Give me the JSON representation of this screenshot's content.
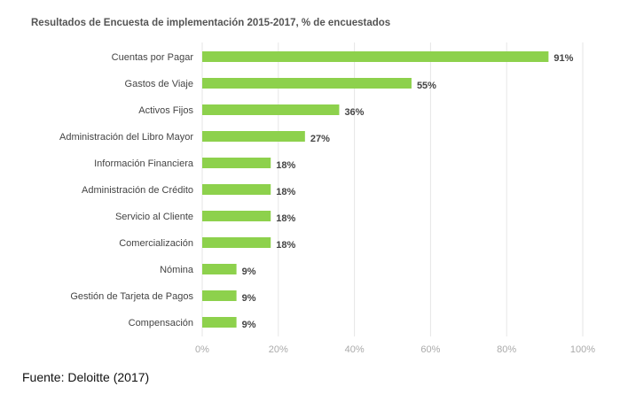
{
  "chart_data": {
    "type": "bar",
    "orientation": "horizontal",
    "title": "Resultados de Encuesta de implementación 2015-2017, % de encuestados",
    "categories": [
      "Cuentas por Pagar",
      "Gastos de Viaje",
      "Activos Fijos",
      "Administración del Libro Mayor",
      "Información Financiera",
      "Administración de Crédito",
      "Servicio al Cliente",
      "Comercialización",
      "Nómina",
      "Gestión de Tarjeta de Pagos",
      "Compensación"
    ],
    "values": [
      91,
      55,
      36,
      27,
      18,
      18,
      18,
      18,
      9,
      9,
      9
    ],
    "data_labels": [
      "91%",
      "55%",
      "36%",
      "27%",
      "18%",
      "18%",
      "18%",
      "18%",
      "9%",
      "9%",
      "9%"
    ],
    "xlim": [
      0,
      100
    ],
    "xticks": [
      "0%",
      "20%",
      "40%",
      "60%",
      "80%",
      "100%"
    ],
    "grid": true,
    "bar_color": "#8dd14c"
  },
  "source": "Fuente: Deloitte (2017)"
}
